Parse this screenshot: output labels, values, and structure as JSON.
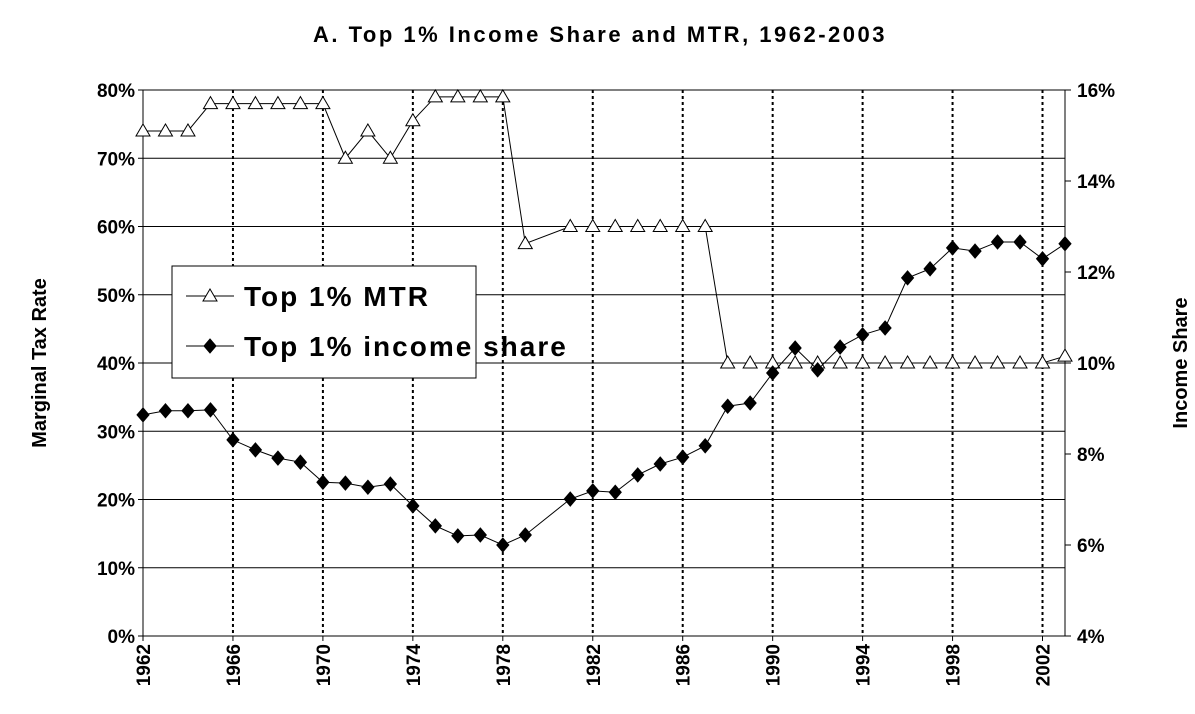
{
  "chart_data": {
    "type": "line",
    "title": "A. Top 1% Income Share and MTR, 1962-2003",
    "y_label": "Marginal Tax Rate",
    "y2_label": "Income Share",
    "x": [
      1962,
      1963,
      1964,
      1965,
      1966,
      1967,
      1968,
      1969,
      1970,
      1971,
      1972,
      1973,
      1974,
      1975,
      1976,
      1977,
      1978,
      1979,
      1981,
      1982,
      1983,
      1984,
      1985,
      1986,
      1987,
      1988,
      1989,
      1990,
      1991,
      1992,
      1993,
      1994,
      1995,
      1996,
      1997,
      1998,
      1999,
      2000,
      2001,
      2002,
      2003
    ],
    "xlim": [
      1962,
      2003
    ],
    "xticks": [
      1962,
      1966,
      1970,
      1974,
      1978,
      1982,
      1986,
      1990,
      1994,
      1998,
      2002
    ],
    "ylim": [
      0,
      80
    ],
    "yticks": [
      {
        "value": 0,
        "label": "0%"
      },
      {
        "value": 10,
        "label": "10%"
      },
      {
        "value": 20,
        "label": "20%"
      },
      {
        "value": 30,
        "label": "30%"
      },
      {
        "value": 40,
        "label": "40%"
      },
      {
        "value": 50,
        "label": "50%"
      },
      {
        "value": 60,
        "label": "60%"
      },
      {
        "value": 70,
        "label": "70%"
      },
      {
        "value": 80,
        "label": "80%"
      }
    ],
    "y2lim": [
      4,
      16
    ],
    "y2ticks": [
      {
        "value": 4,
        "label": "4%"
      },
      {
        "value": 6,
        "label": "6%"
      },
      {
        "value": 8,
        "label": "8%"
      },
      {
        "value": 10,
        "label": "10%"
      },
      {
        "value": 12,
        "label": "12%"
      },
      {
        "value": 14,
        "label": "14%"
      },
      {
        "value": 16,
        "label": "16%"
      }
    ],
    "grid": true,
    "legend": "left",
    "series": [
      {
        "name": "Top 1% MTR",
        "color": "#000000",
        "marker": "triangle",
        "values": [
          74,
          74,
          74,
          78,
          78,
          78,
          78,
          78,
          78,
          70,
          74,
          70,
          75.5,
          79,
          79,
          79,
          79,
          57.5,
          60,
          60,
          60,
          60,
          60,
          60,
          60,
          40,
          40,
          40,
          40,
          40,
          40,
          40,
          40,
          40,
          40,
          40,
          40,
          40,
          40,
          40,
          41
        ]
      },
      {
        "name": "Top 1% income share",
        "color": "#000000",
        "marker": "diamond",
        "axis": "y2",
        "values": [
          8.86,
          8.95,
          8.95,
          8.97,
          8.31,
          8.09,
          7.91,
          7.82,
          7.38,
          7.36,
          7.27,
          7.34,
          6.86,
          6.42,
          6.2,
          6.22,
          6.0,
          6.22,
          7.01,
          7.19,
          7.16,
          7.54,
          7.78,
          7.93,
          8.18,
          9.05,
          9.12,
          9.78,
          10.33,
          9.85,
          10.35,
          10.62,
          10.77,
          11.87,
          12.07,
          12.53,
          12.46,
          12.66,
          12.66,
          12.29,
          12.62
        ]
      }
    ]
  }
}
